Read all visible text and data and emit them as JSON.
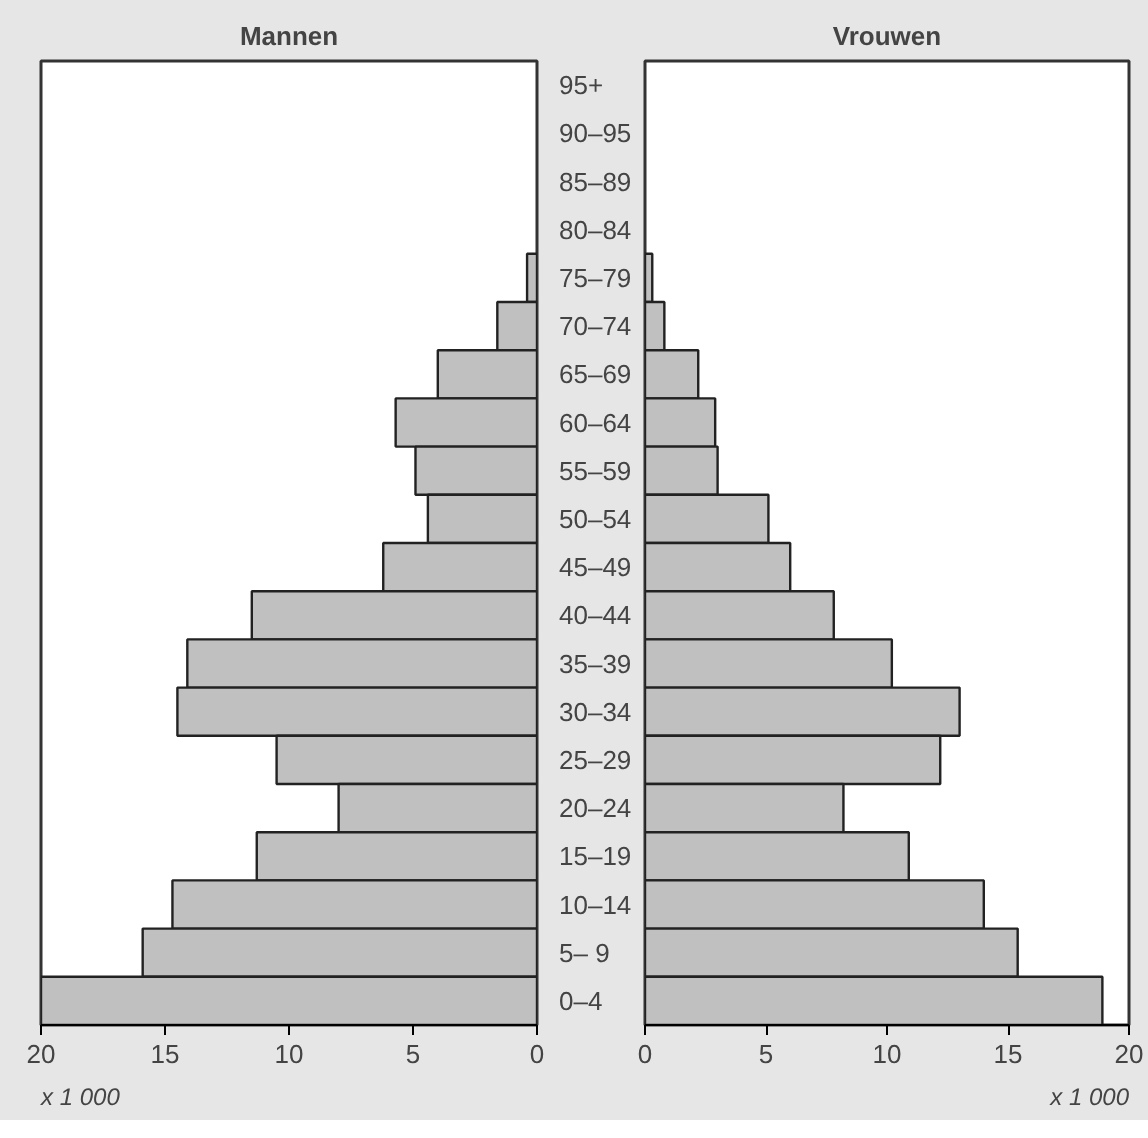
{
  "chart_data": [
    {
      "type": "bar",
      "orientation": "horizontal",
      "title": "Mannen",
      "categories": [
        "95+",
        "90–95",
        "85–89",
        "80–84",
        "75–79",
        "70–74",
        "65–69",
        "60–64",
        "55–59",
        "50–54",
        "45–49",
        "40–44",
        "35–39",
        "30–34",
        "25–29",
        "20–24",
        "15–19",
        "10–14",
        "5– 9",
        "0–4"
      ],
      "values": [
        null,
        null,
        null,
        null,
        0.4,
        1.6,
        4.0,
        5.7,
        4.9,
        4.4,
        6.2,
        11.5,
        14.1,
        14.5,
        10.5,
        8.0,
        11.3,
        14.7,
        15.9,
        20
      ],
      "color": "#c0c0c0",
      "xlim": [
        20,
        0
      ],
      "xticks": [
        20,
        15,
        10,
        5,
        0
      ],
      "annotations": [
        "x 1 000"
      ]
    },
    {
      "type": "bar",
      "orientation": "horizontal",
      "title": "Vrouwen",
      "categories": [
        null,
        null,
        null,
        null,
        null,
        null,
        null,
        null,
        null,
        null,
        null,
        null,
        null,
        null,
        null,
        null,
        null,
        null,
        null,
        null
      ],
      "values": [
        null,
        null,
        null,
        null,
        0.3,
        0.8,
        2.2,
        2.9,
        3.0,
        5.1,
        6.0,
        7.8,
        10.2,
        13.0,
        12.2,
        8.2,
        10.9,
        14.0,
        15.4,
        18.9
      ],
      "color": "#c0c0c0",
      "xlim": [
        0,
        20
      ],
      "xticks": [
        0,
        5,
        10,
        15,
        20
      ],
      "annotations": [
        "x 1 000"
      ],
      "tick_labels": "x"
    }
  ]
}
